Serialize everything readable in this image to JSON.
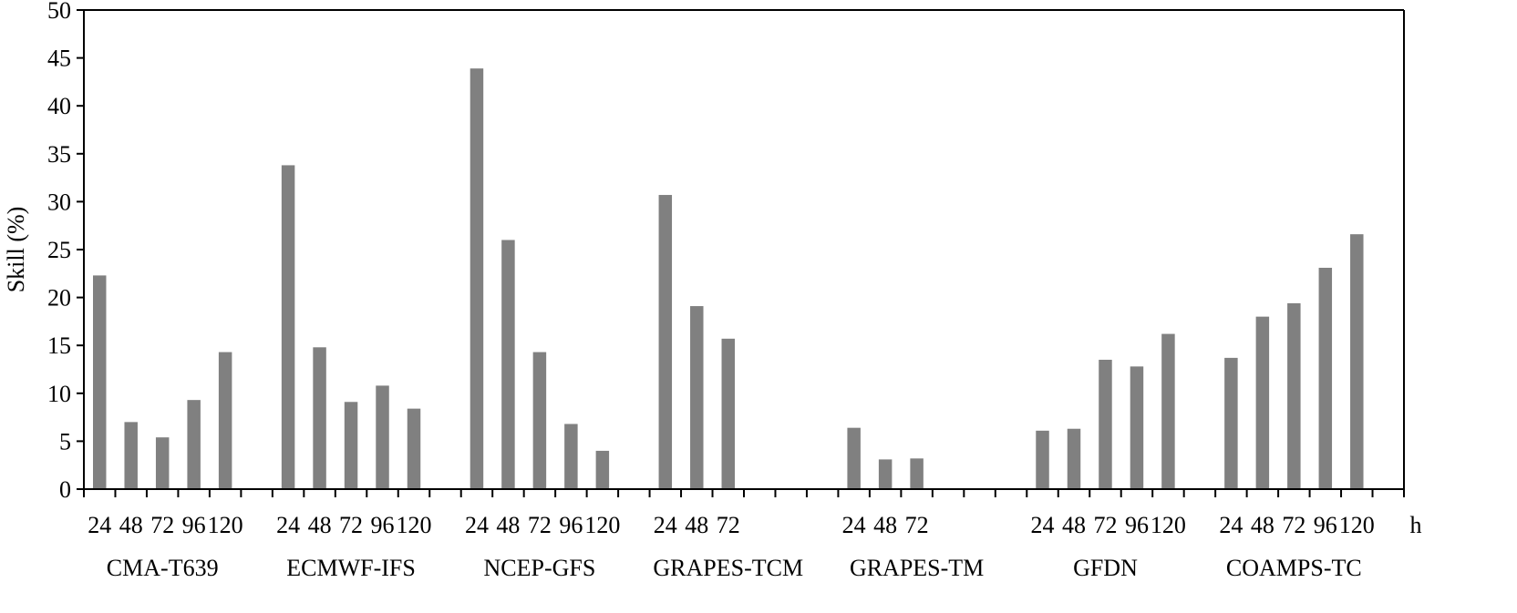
{
  "colors": {
    "bar": "#808080",
    "axis": "#000000",
    "background": "#ffffff"
  },
  "chart_data": {
    "type": "bar",
    "title": "",
    "ylabel": "Skill  (%)",
    "xlabel": "",
    "x_unit": "h",
    "ylim": [
      0,
      50
    ],
    "yticks": [
      0,
      5,
      10,
      15,
      20,
      25,
      30,
      35,
      40,
      45,
      50
    ],
    "grid": false,
    "legend": "none",
    "groups": [
      {
        "name": "CMA-T639",
        "hours": [
          "24",
          "48",
          "72",
          "96",
          "120"
        ],
        "values": [
          22.3,
          7.0,
          5.4,
          9.3,
          14.3
        ]
      },
      {
        "name": "ECMWF-IFS",
        "hours": [
          "24",
          "48",
          "72",
          "96",
          "120"
        ],
        "values": [
          33.8,
          14.8,
          9.1,
          10.8,
          8.4
        ]
      },
      {
        "name": "NCEP-GFS",
        "hours": [
          "24",
          "48",
          "72",
          "96",
          "120"
        ],
        "values": [
          43.9,
          26.0,
          14.3,
          6.8,
          4.0
        ]
      },
      {
        "name": "GRAPES-TCM",
        "hours": [
          "24",
          "48",
          "72"
        ],
        "values": [
          30.7,
          19.1,
          15.7
        ]
      },
      {
        "name": "GRAPES-TM",
        "hours": [
          "24",
          "48",
          "72"
        ],
        "values": [
          6.4,
          3.1,
          3.2
        ]
      },
      {
        "name": "GFDN",
        "hours": [
          "24",
          "48",
          "72",
          "96",
          "120"
        ],
        "values": [
          6.1,
          6.3,
          13.5,
          12.8,
          16.2
        ]
      },
      {
        "name": "COAMPS-TC",
        "hours": [
          "24",
          "48",
          "72",
          "96",
          "120"
        ],
        "values": [
          13.7,
          18.0,
          19.4,
          23.1,
          26.6
        ]
      }
    ]
  }
}
